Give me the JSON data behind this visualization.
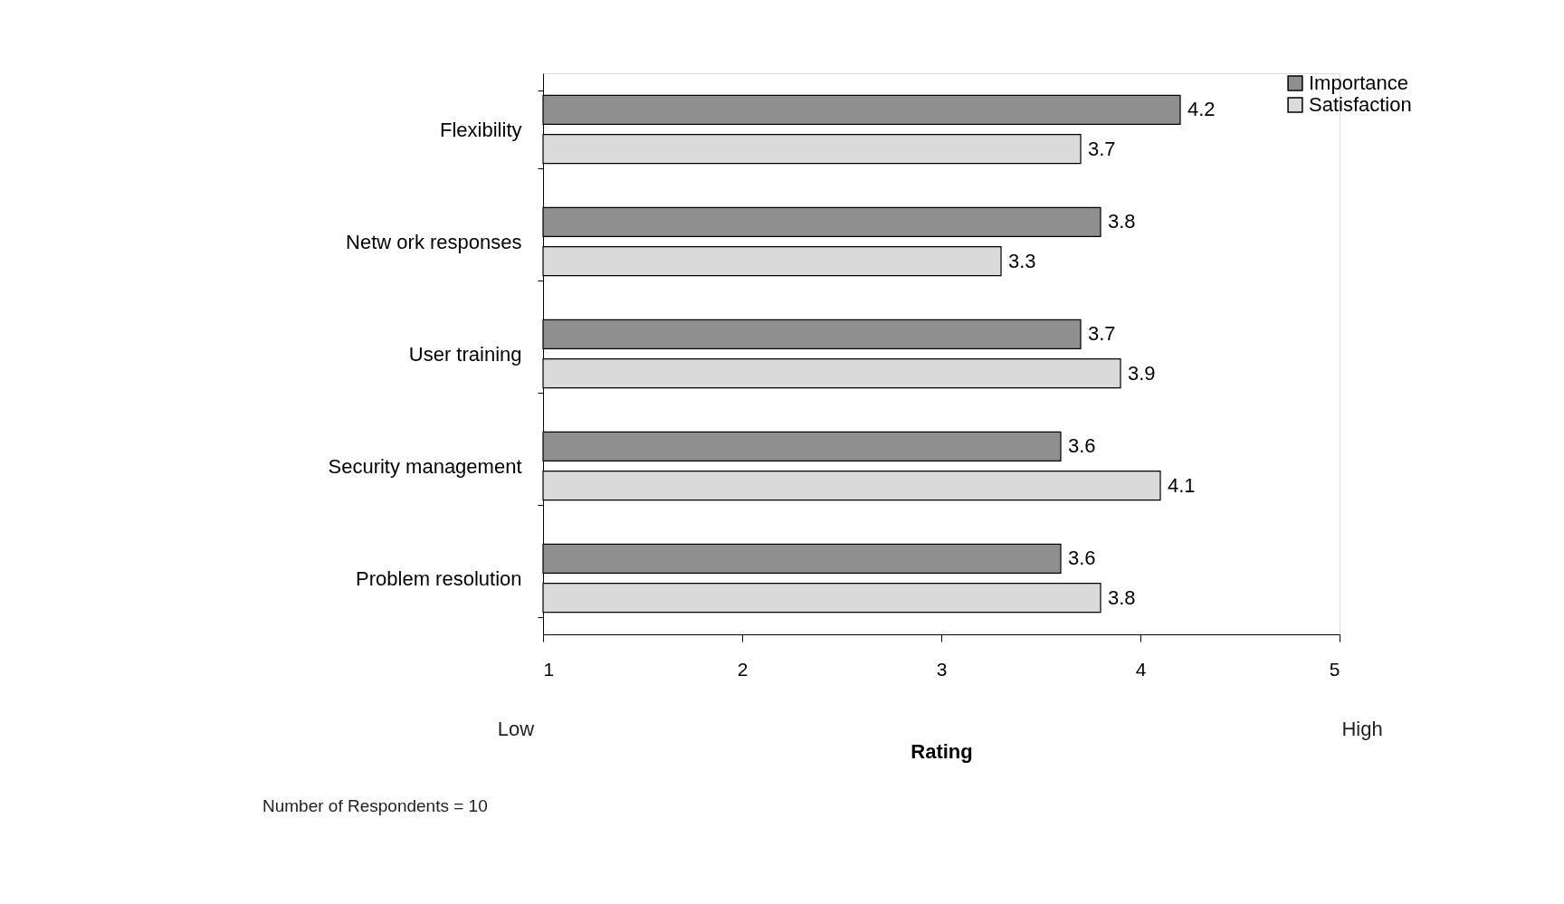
{
  "chart_data": {
    "type": "bar",
    "orientation": "horizontal",
    "xlabel": "Rating",
    "categories": [
      "Flexibility",
      "Netw ork responses",
      "User training",
      "Security management",
      "Problem resolution"
    ],
    "series": [
      {
        "name": "Importance",
        "color": "#8f8f8f",
        "values": [
          4.2,
          3.8,
          3.7,
          3.6,
          3.6
        ]
      },
      {
        "name": "Satisfaction",
        "color": "#dadada",
        "values": [
          3.7,
          3.3,
          3.9,
          4.1,
          3.8
        ]
      }
    ],
    "xlim": [
      1,
      5
    ],
    "xticks": [
      1,
      2,
      3,
      4,
      5
    ],
    "data_labels": true,
    "legend": "right",
    "grid": false,
    "annotations": [
      "Low",
      "High",
      "Number of Respondents = 10"
    ]
  }
}
